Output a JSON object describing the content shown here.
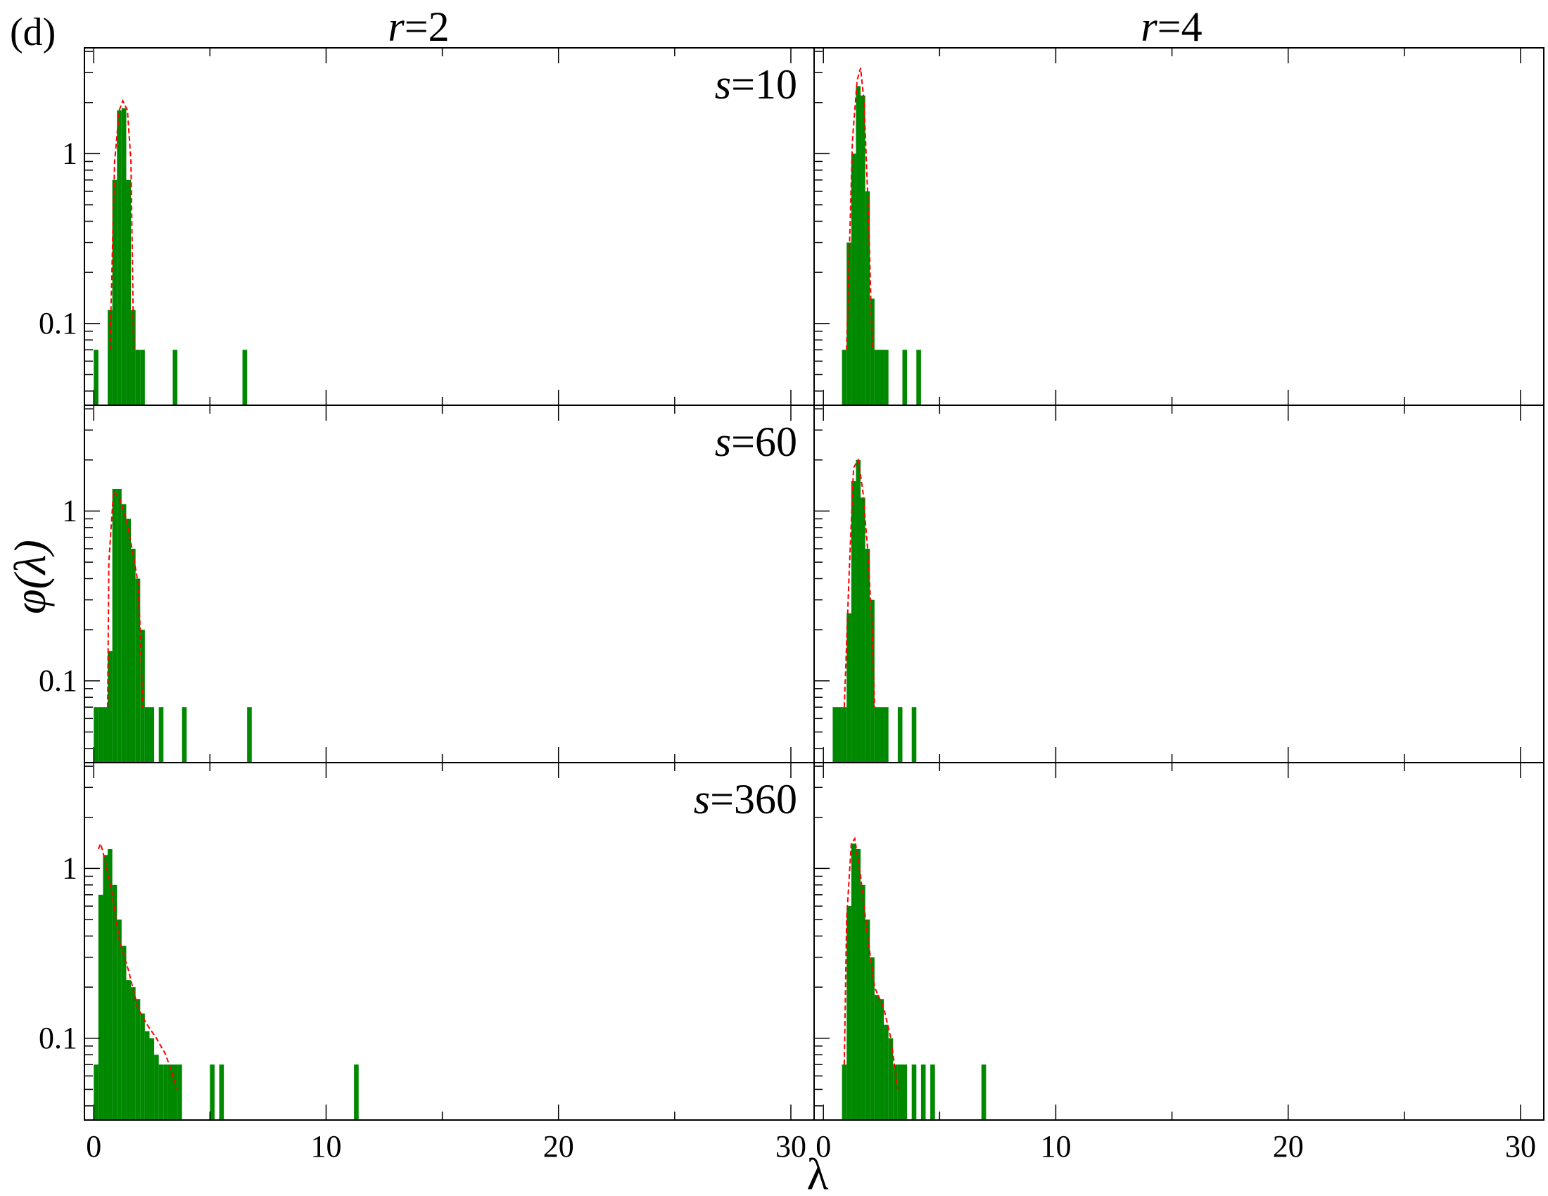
{
  "figure": {
    "panel_tag": "(d)",
    "x_axis_label": "λ",
    "y_axis_label": "φ(λ)",
    "column_headers": [
      {
        "var": "r",
        "eq": "=2"
      },
      {
        "var": "r",
        "eq": "=4"
      }
    ],
    "row_labels": [
      {
        "var": "s",
        "eq": "=10"
      },
      {
        "var": "s",
        "eq": "=60"
      },
      {
        "var": "s",
        "eq": "=360"
      }
    ],
    "x_tick_labels": [
      "0",
      "10",
      "20",
      "30"
    ],
    "y_tick_labels": [
      "0.1",
      "1"
    ]
  },
  "colors": {
    "histogram": "#008800",
    "fit_curve": "#ff0000",
    "axis": "#000000"
  },
  "chart_data": {
    "type": "bar",
    "layout": "3x2 grid of histograms with shared axes",
    "x_scale": "linear",
    "y_scale": "log",
    "xlim": [
      -0.4,
      31
    ],
    "ylim": [
      0.033,
      4.2
    ],
    "x_ticks": [
      0,
      10,
      20,
      30
    ],
    "y_ticks": [
      0.1,
      1
    ],
    "bin_width": 0.2,
    "histogram_color": "green",
    "fit_curve_style": "red dashed",
    "panels": [
      {
        "r": 2,
        "s": 10,
        "bins": [
          [
            0,
            0.07
          ],
          [
            0.6,
            0.07
          ],
          [
            0.6,
            0.12
          ],
          [
            0.8,
            0.7
          ],
          [
            1.0,
            1.8
          ],
          [
            1.2,
            1.85
          ],
          [
            1.4,
            0.7
          ],
          [
            1.6,
            0.12
          ],
          [
            1.8,
            0.07
          ],
          [
            2.0,
            0.07
          ],
          [
            3.4,
            0.07
          ],
          [
            6.4,
            0.07
          ]
        ],
        "curve": [
          [
            0.7,
            0.07
          ],
          [
            0.9,
            0.9
          ],
          [
            1.1,
            1.8
          ],
          [
            1.25,
            2.05
          ],
          [
            1.45,
            1.8
          ],
          [
            1.6,
            0.9
          ],
          [
            1.72,
            0.07
          ]
        ]
      },
      {
        "r": 4,
        "s": 10,
        "bins": [
          [
            0.8,
            0.07
          ],
          [
            1.0,
            0.3
          ],
          [
            1.2,
            1.0
          ],
          [
            1.4,
            2.5
          ],
          [
            1.6,
            2.2
          ],
          [
            1.8,
            0.6
          ],
          [
            2.0,
            0.14
          ],
          [
            2.2,
            0.07
          ],
          [
            2.4,
            0.07
          ],
          [
            2.6,
            0.07
          ],
          [
            3.4,
            0.07
          ],
          [
            4.0,
            0.07
          ]
        ],
        "curve": [
          [
            1.0,
            0.07
          ],
          [
            1.25,
            1.2
          ],
          [
            1.45,
            2.7
          ],
          [
            1.6,
            3.2
          ],
          [
            1.75,
            2.0
          ],
          [
            1.95,
            0.4
          ],
          [
            2.1,
            0.07
          ]
        ]
      },
      {
        "r": 2,
        "s": 60,
        "bins": [
          [
            0,
            0.07
          ],
          [
            0.2,
            0.07
          ],
          [
            0.4,
            0.07
          ],
          [
            0.6,
            0.15
          ],
          [
            0.8,
            1.35
          ],
          [
            1.0,
            1.35
          ],
          [
            1.2,
            1.1
          ],
          [
            1.4,
            0.9
          ],
          [
            1.6,
            0.6
          ],
          [
            1.8,
            0.4
          ],
          [
            2.0,
            0.2
          ],
          [
            2.2,
            0.07
          ],
          [
            2.4,
            0.07
          ],
          [
            2.8,
            0.07
          ],
          [
            3.8,
            0.07
          ],
          [
            6.6,
            0.07
          ]
        ],
        "curve": [
          [
            0.6,
            0.07
          ],
          [
            0.65,
            0.5
          ],
          [
            0.85,
            1.3
          ],
          [
            1.1,
            1.2
          ],
          [
            1.4,
            0.9
          ],
          [
            1.7,
            0.55
          ],
          [
            1.9,
            0.38
          ],
          [
            2.0,
            0.2
          ],
          [
            2.1,
            0.07
          ]
        ]
      },
      {
        "r": 4,
        "s": 60,
        "bins": [
          [
            0.4,
            0.07
          ],
          [
            0.6,
            0.07
          ],
          [
            0.8,
            0.07
          ],
          [
            1.0,
            0.25
          ],
          [
            1.2,
            1.5
          ],
          [
            1.4,
            2.0
          ],
          [
            1.6,
            1.2
          ],
          [
            1.8,
            0.6
          ],
          [
            2.0,
            0.3
          ],
          [
            2.2,
            0.07
          ],
          [
            2.4,
            0.07
          ],
          [
            2.6,
            0.07
          ],
          [
            3.2,
            0.07
          ],
          [
            3.8,
            0.07
          ]
        ],
        "curve": [
          [
            0.9,
            0.07
          ],
          [
            1.1,
            0.4
          ],
          [
            1.3,
            1.8
          ],
          [
            1.5,
            2.0
          ],
          [
            1.7,
            1.3
          ],
          [
            1.9,
            0.6
          ],
          [
            2.1,
            0.2
          ],
          [
            2.2,
            0.07
          ]
        ]
      },
      {
        "r": 2,
        "s": 360,
        "bins": [
          [
            0,
            0.07
          ],
          [
            0.2,
            0.7
          ],
          [
            0.4,
            1.2
          ],
          [
            0.6,
            1.3
          ],
          [
            0.8,
            0.8
          ],
          [
            1.0,
            0.5
          ],
          [
            1.2,
            0.35
          ],
          [
            1.4,
            0.22
          ],
          [
            1.6,
            0.2
          ],
          [
            1.8,
            0.17
          ],
          [
            2.0,
            0.14
          ],
          [
            2.2,
            0.11
          ],
          [
            2.4,
            0.1
          ],
          [
            2.6,
            0.08
          ],
          [
            2.8,
            0.07
          ],
          [
            3.0,
            0.07
          ],
          [
            3.2,
            0.07
          ],
          [
            3.4,
            0.07
          ],
          [
            3.6,
            0.07
          ],
          [
            5.0,
            0.07
          ],
          [
            5.4,
            0.07
          ],
          [
            11.2,
            0.07
          ]
        ],
        "curve": [
          [
            0.2,
            1.3
          ],
          [
            0.3,
            1.4
          ],
          [
            0.5,
            1.1
          ],
          [
            0.8,
            0.7
          ],
          [
            1.1,
            0.38
          ],
          [
            1.5,
            0.25
          ],
          [
            1.9,
            0.15
          ],
          [
            2.3,
            0.12
          ],
          [
            2.7,
            0.1
          ],
          [
            3.1,
            0.08
          ],
          [
            3.6,
            0.05
          ]
        ]
      },
      {
        "r": 4,
        "s": 360,
        "bins": [
          [
            0.8,
            0.07
          ],
          [
            1.0,
            0.6
          ],
          [
            1.2,
            1.4
          ],
          [
            1.4,
            1.3
          ],
          [
            1.6,
            0.8
          ],
          [
            1.8,
            0.5
          ],
          [
            2.0,
            0.3
          ],
          [
            2.2,
            0.18
          ],
          [
            2.4,
            0.17
          ],
          [
            2.6,
            0.12
          ],
          [
            2.8,
            0.1
          ],
          [
            3.0,
            0.07
          ],
          [
            3.2,
            0.07
          ],
          [
            3.4,
            0.07
          ],
          [
            3.8,
            0.07
          ],
          [
            4.2,
            0.07
          ],
          [
            4.6,
            0.07
          ],
          [
            6.8,
            0.07
          ]
        ],
        "curve": [
          [
            0.9,
            0.07
          ],
          [
            1.0,
            0.5
          ],
          [
            1.2,
            1.4
          ],
          [
            1.35,
            1.5
          ],
          [
            1.6,
            0.9
          ],
          [
            1.9,
            0.4
          ],
          [
            2.2,
            0.2
          ],
          [
            2.6,
            0.15
          ],
          [
            2.9,
            0.1
          ],
          [
            3.2,
            0.05
          ]
        ]
      }
    ]
  }
}
